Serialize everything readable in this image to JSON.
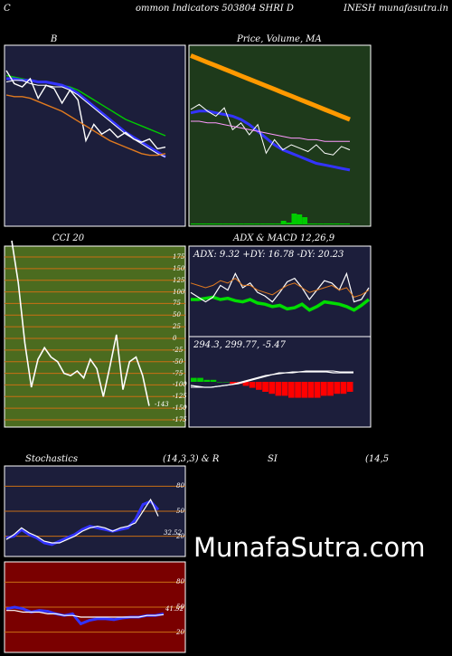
{
  "header": {
    "left": "C",
    "middle": "ommon  Indicators 503804  SHRI D",
    "right": "INESH munafasutra.in"
  },
  "colors": {
    "navy": "#1c1e3b",
    "dark_green": "#1e3a1b",
    "olive": "#4b6b1f",
    "dark_red": "#7a0000",
    "orange": "#ff9900",
    "grid_orange": "#c96e14"
  },
  "watermark": "MunafaSutra.com",
  "chart_data": [
    {
      "type": "line",
      "title": "B",
      "series": [
        {
          "name": "",
          "color": "#00cc00",
          "values": [
            87,
            86,
            85,
            84,
            83,
            83,
            82,
            81,
            80,
            78,
            75,
            72,
            69,
            66,
            63,
            60,
            58,
            56,
            54,
            52,
            50
          ]
        },
        {
          "name": "",
          "color": "#3333ff",
          "values": [
            85,
            85,
            84,
            84,
            83,
            83,
            82,
            81,
            79,
            76,
            72,
            68,
            64,
            60,
            56,
            52,
            49,
            46,
            43,
            40,
            37
          ]
        },
        {
          "name": "",
          "color": "#ffffff",
          "values": [
            83,
            84,
            84,
            82,
            81,
            81,
            80,
            80,
            78,
            75,
            71,
            67,
            63,
            59,
            55,
            51,
            48,
            45,
            42,
            39,
            37
          ]
        },
        {
          "name": "",
          "color": "#ffffff",
          "values": [
            90,
            82,
            80,
            85,
            73,
            81,
            79,
            70,
            78,
            72,
            47,
            57,
            51,
            54,
            49,
            52,
            48,
            46,
            48,
            42,
            43
          ]
        },
        {
          "name": "",
          "color": "#e07a1f",
          "values": [
            75,
            74,
            74,
            73,
            71,
            69,
            67,
            65,
            62,
            59,
            56,
            53,
            50,
            47,
            45,
            43,
            41,
            39,
            38,
            38,
            39
          ]
        }
      ]
    },
    {
      "type": "line",
      "title": "Price,  Volume,  MA",
      "series": [
        {
          "name": "",
          "color": "#ff9900",
          "values": [
            96,
            94,
            92,
            90,
            88,
            86,
            84,
            82,
            80,
            78,
            76,
            74,
            72,
            70,
            68,
            66,
            64,
            62,
            60,
            58
          ]
        },
        {
          "name": "",
          "color": "#3333ff",
          "values": [
            62,
            63,
            63,
            62,
            61,
            60,
            58,
            55,
            51,
            47,
            43,
            40,
            38,
            36,
            34,
            32,
            31,
            30,
            29,
            28
          ]
        },
        {
          "name": "",
          "color": "#ffffff",
          "values": [
            64,
            67,
            63,
            60,
            65,
            52,
            56,
            49,
            55,
            38,
            46,
            40,
            43,
            41,
            39,
            43,
            38,
            37,
            42,
            40
          ]
        },
        {
          "name": "",
          "color": "#ff99ff",
          "values": [
            57,
            57,
            56,
            56,
            55,
            54,
            53,
            52,
            51,
            50,
            49,
            48,
            47,
            47,
            46,
            46,
            45,
            45,
            45,
            45
          ]
        }
      ],
      "volume": [
        1,
        1,
        1,
        1,
        1,
        1,
        1,
        1,
        1,
        1,
        1,
        1,
        1,
        1,
        1,
        1,
        1,
        4,
        2,
        12,
        11,
        8,
        1,
        1,
        1,
        1,
        1,
        1,
        1,
        1
      ]
    },
    {
      "type": "line",
      "title": "CCI 20",
      "ylim": [
        -200,
        200
      ],
      "y_ticks": [
        "175",
        "150",
        "125",
        "100",
        "75",
        "50",
        "25",
        "0",
        "-25",
        "-50",
        "-75",
        "-100",
        "-125",
        "-150",
        "-175"
      ],
      "series": [
        {
          "name": "",
          "color": "#ffffff",
          "values": [
            210,
            120,
            -10,
            -105,
            -45,
            -20,
            -40,
            -50,
            -75,
            -80,
            -70,
            -85,
            -45,
            -65,
            -125,
            -60,
            8,
            -110,
            -50,
            -40,
            -80,
            -145
          ]
        }
      ],
      "last_label": "-143"
    },
    {
      "type": "line",
      "title": "ADX  & MACD 12,26,9",
      "adx_label": "ADX: 9.32  +DY: 16.78  -DY: 20.23",
      "macd_label": "294.3,  299.77,  -5.47",
      "adx_series": [
        {
          "name": "",
          "color": "#00dd00",
          "values": [
            30,
            30,
            31,
            32,
            30,
            31,
            29,
            28,
            30,
            27,
            26,
            24,
            25,
            22,
            23,
            26,
            21,
            24,
            28,
            27,
            26,
            24,
            21,
            25,
            30
          ]
        },
        {
          "name": "",
          "color": "#ffffff",
          "values": [
            36,
            32,
            28,
            32,
            42,
            38,
            52,
            40,
            44,
            36,
            33,
            28,
            36,
            45,
            48,
            40,
            30,
            38,
            46,
            44,
            38,
            52,
            28,
            30,
            40
          ]
        }
      ],
      "macd_histogram": [
        2,
        2,
        1,
        1,
        0,
        0,
        -1,
        -1,
        -2,
        -3,
        -4,
        -5,
        -6,
        -7,
        -7,
        -8,
        -8,
        -8,
        -8,
        -8,
        -7,
        -7,
        -6,
        -6,
        -5
      ]
    },
    {
      "type": "line",
      "title": "Stochastics",
      "subtitle": "(14,3,3) & R",
      "y_ticks": [
        "80",
        "50",
        "20"
      ],
      "ylim": [
        0,
        100
      ],
      "series": [
        {
          "name": "",
          "color": "#3333ff",
          "values": [
            18,
            20,
            28,
            22,
            18,
            12,
            10,
            14,
            18,
            22,
            28,
            32,
            30,
            28,
            26,
            28,
            30,
            40,
            58,
            62,
            52
          ]
        },
        {
          "name": "",
          "color": "#ffffff",
          "values": [
            16,
            22,
            30,
            24,
            20,
            14,
            12,
            12,
            16,
            20,
            26,
            30,
            32,
            30,
            26,
            30,
            32,
            36,
            50,
            64,
            44
          ]
        }
      ],
      "last_label": "32.52"
    },
    {
      "type": "line",
      "title": "SI",
      "subtitle": "(14,5",
      "y_ticks": [
        "80",
        "50",
        "20"
      ],
      "ylim": [
        0,
        100
      ],
      "series": [
        {
          "name": "",
          "color": "#3333ff",
          "values": [
            48,
            50,
            48,
            44,
            46,
            45,
            42,
            40,
            42,
            30,
            34,
            36,
            36,
            35,
            37,
            38,
            38,
            40,
            40,
            42
          ]
        },
        {
          "name": "",
          "color": "#ffffff",
          "values": [
            46,
            46,
            44,
            44,
            44,
            42,
            42,
            40,
            40,
            38,
            38,
            38,
            38,
            38,
            38,
            38,
            38,
            40,
            40,
            41
          ]
        }
      ],
      "last_label": "41.52"
    }
  ]
}
